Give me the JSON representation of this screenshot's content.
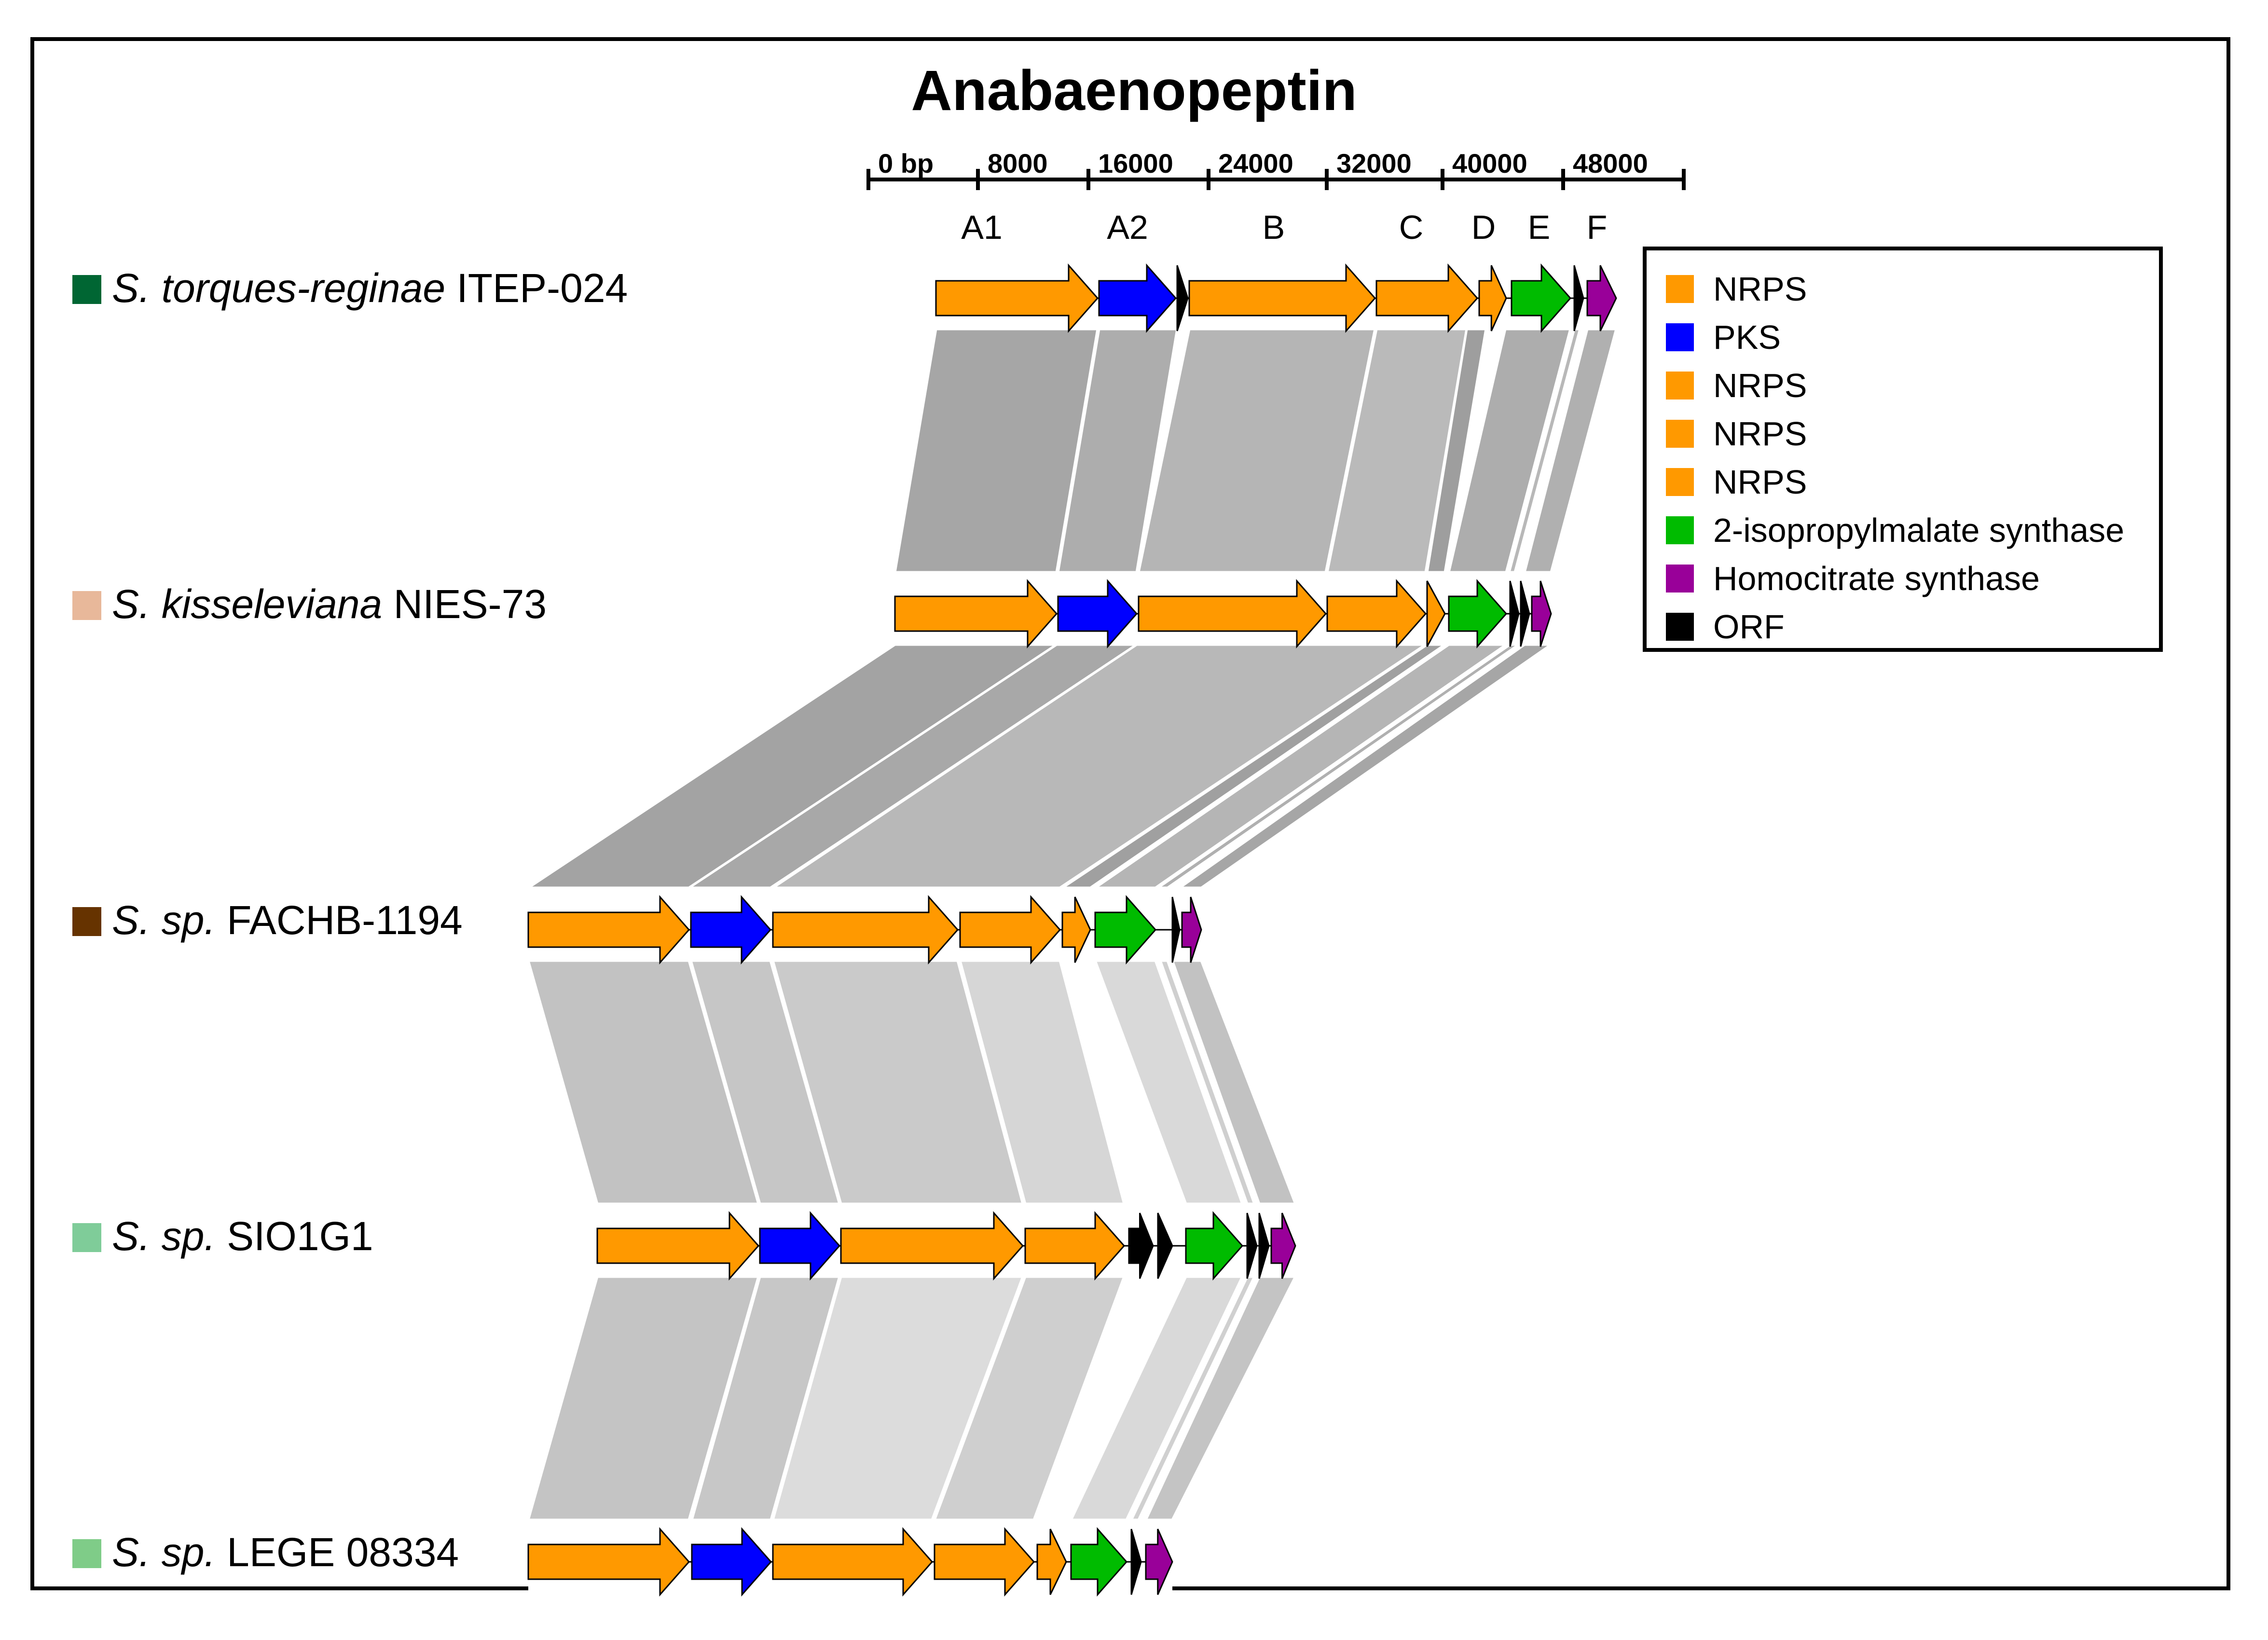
{
  "title": "Anabaenopeptin",
  "scale": {
    "ticks": [
      "0 bp",
      "8000",
      "16000",
      "24000",
      "32000",
      "40000",
      "48000"
    ]
  },
  "gene_labels": [
    "A1",
    "A2",
    "B",
    "C",
    "D",
    "E",
    "F"
  ],
  "legend": [
    {
      "label": "NRPS",
      "color": "#FF9900"
    },
    {
      "label": "PKS",
      "color": "#0000FF"
    },
    {
      "label": "NRPS",
      "color": "#FF9900"
    },
    {
      "label": "NRPS",
      "color": "#FF9900"
    },
    {
      "label": "NRPS",
      "color": "#FF9900"
    },
    {
      "label": "2-isopropylmalate synthase",
      "color": "#00BB00"
    },
    {
      "label": "Homocitrate synthase",
      "color": "#990099"
    },
    {
      "label": "ORF",
      "color": "#000000"
    }
  ],
  "strains": [
    {
      "genus": "S. torques-reginae",
      "strain": "ITEP-024",
      "color": "#006633"
    },
    {
      "genus": "S. kisseleviana",
      "strain": "NIES-73",
      "color": "#E8B89A"
    },
    {
      "genus": "S. sp.",
      "strain": "FACHB-1194",
      "color": "#663300"
    },
    {
      "genus": "S. sp.",
      "strain": "SIO1G1",
      "color": "#7FCC99"
    },
    {
      "genus": "S. sp.",
      "strain": "LEGE 08334",
      "color": "#7FCC88"
    }
  ],
  "colors": {
    "nrps": "#FF9900",
    "pks": "#0000FF",
    "ips": "#00BB00",
    "hcs": "#990099",
    "orf": "#000000"
  }
}
